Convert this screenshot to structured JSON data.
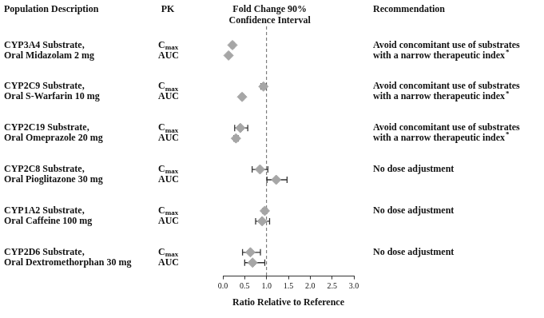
{
  "chart_data": {
    "type": "forest",
    "columns": {
      "description": "Population Description",
      "pk": "PK",
      "ci": [
        "Fold Change 90%",
        "Confidence Interval"
      ],
      "recommendation": "Recommendation"
    },
    "x_label": "Ratio Relative to Reference",
    "xlim": [
      0,
      3
    ],
    "xticks": [
      {
        "value": 0,
        "label": "0.0"
      },
      {
        "value": 0.5,
        "label": "0.5"
      },
      {
        "value": 1,
        "label": "1.0"
      },
      {
        "value": 1.5,
        "label": "1.5"
      },
      {
        "value": 2,
        "label": "2.0"
      },
      {
        "value": 2.5,
        "label": "2.5"
      },
      {
        "value": 3,
        "label": "3.0"
      }
    ],
    "reference_line": 1,
    "marker": "diamond",
    "color": "#a6a6a6",
    "groups": [
      {
        "description": [
          "CYP3A4 Substrate,",
          "Oral Midazolam 2 mg"
        ],
        "recommendation": [
          "Avoid concomitant use of substrates",
          "with a narrow therapeutic index*"
        ],
        "rows": [
          {
            "pk": "Cmax",
            "value": 0.22,
            "ci_low": 0.19,
            "ci_high": 0.25
          },
          {
            "pk": "AUC",
            "value": 0.13,
            "ci_low": 0.11,
            "ci_high": 0.15
          }
        ]
      },
      {
        "description": [
          "CYP2C9 Substrate,",
          "Oral S-Warfarin 10 mg"
        ],
        "recommendation": [
          "Avoid concomitant use of substrates",
          "with a narrow therapeutic index*"
        ],
        "rows": [
          {
            "pk": "Cmax",
            "value": 0.93,
            "ci_low": 0.87,
            "ci_high": 0.99
          },
          {
            "pk": "AUC",
            "value": 0.44,
            "ci_low": 0.41,
            "ci_high": 0.47
          }
        ]
      },
      {
        "description": [
          "CYP2C19 Substrate,",
          "Oral Omeprazole 20 mg"
        ],
        "recommendation": [
          "Avoid concomitant use of substrates",
          "with a narrow therapeutic index*"
        ],
        "rows": [
          {
            "pk": "Cmax",
            "value": 0.4,
            "ci_low": 0.27,
            "ci_high": 0.57
          },
          {
            "pk": "AUC",
            "value": 0.3,
            "ci_low": 0.25,
            "ci_high": 0.35
          }
        ]
      },
      {
        "description": [
          "CYP2C8 Substrate,",
          "Oral Pioglitazone 30 mg"
        ],
        "recommendation": [
          "No dose adjustment"
        ],
        "rows": [
          {
            "pk": "Cmax",
            "value": 0.85,
            "ci_low": 0.67,
            "ci_high": 1.03
          },
          {
            "pk": "AUC",
            "value": 1.22,
            "ci_low": 1.01,
            "ci_high": 1.47
          }
        ]
      },
      {
        "description": [
          "CYP1A2 Substrate,",
          "Oral Caffeine 100 mg"
        ],
        "recommendation": [
          "No dose adjustment"
        ],
        "rows": [
          {
            "pk": "Cmax",
            "value": 0.96,
            "ci_low": 0.92,
            "ci_high": 1.0
          },
          {
            "pk": "AUC",
            "value": 0.9,
            "ci_low": 0.75,
            "ci_high": 1.07
          }
        ]
      },
      {
        "description": [
          "CYP2D6 Substrate,",
          "Oral Dextromethorphan 30 mg"
        ],
        "recommendation": [
          "No dose adjustment"
        ],
        "rows": [
          {
            "pk": "Cmax",
            "value": 0.63,
            "ci_low": 0.45,
            "ci_high": 0.86
          },
          {
            "pk": "AUC",
            "value": 0.68,
            "ci_low": 0.5,
            "ci_high": 0.96
          }
        ]
      }
    ]
  }
}
